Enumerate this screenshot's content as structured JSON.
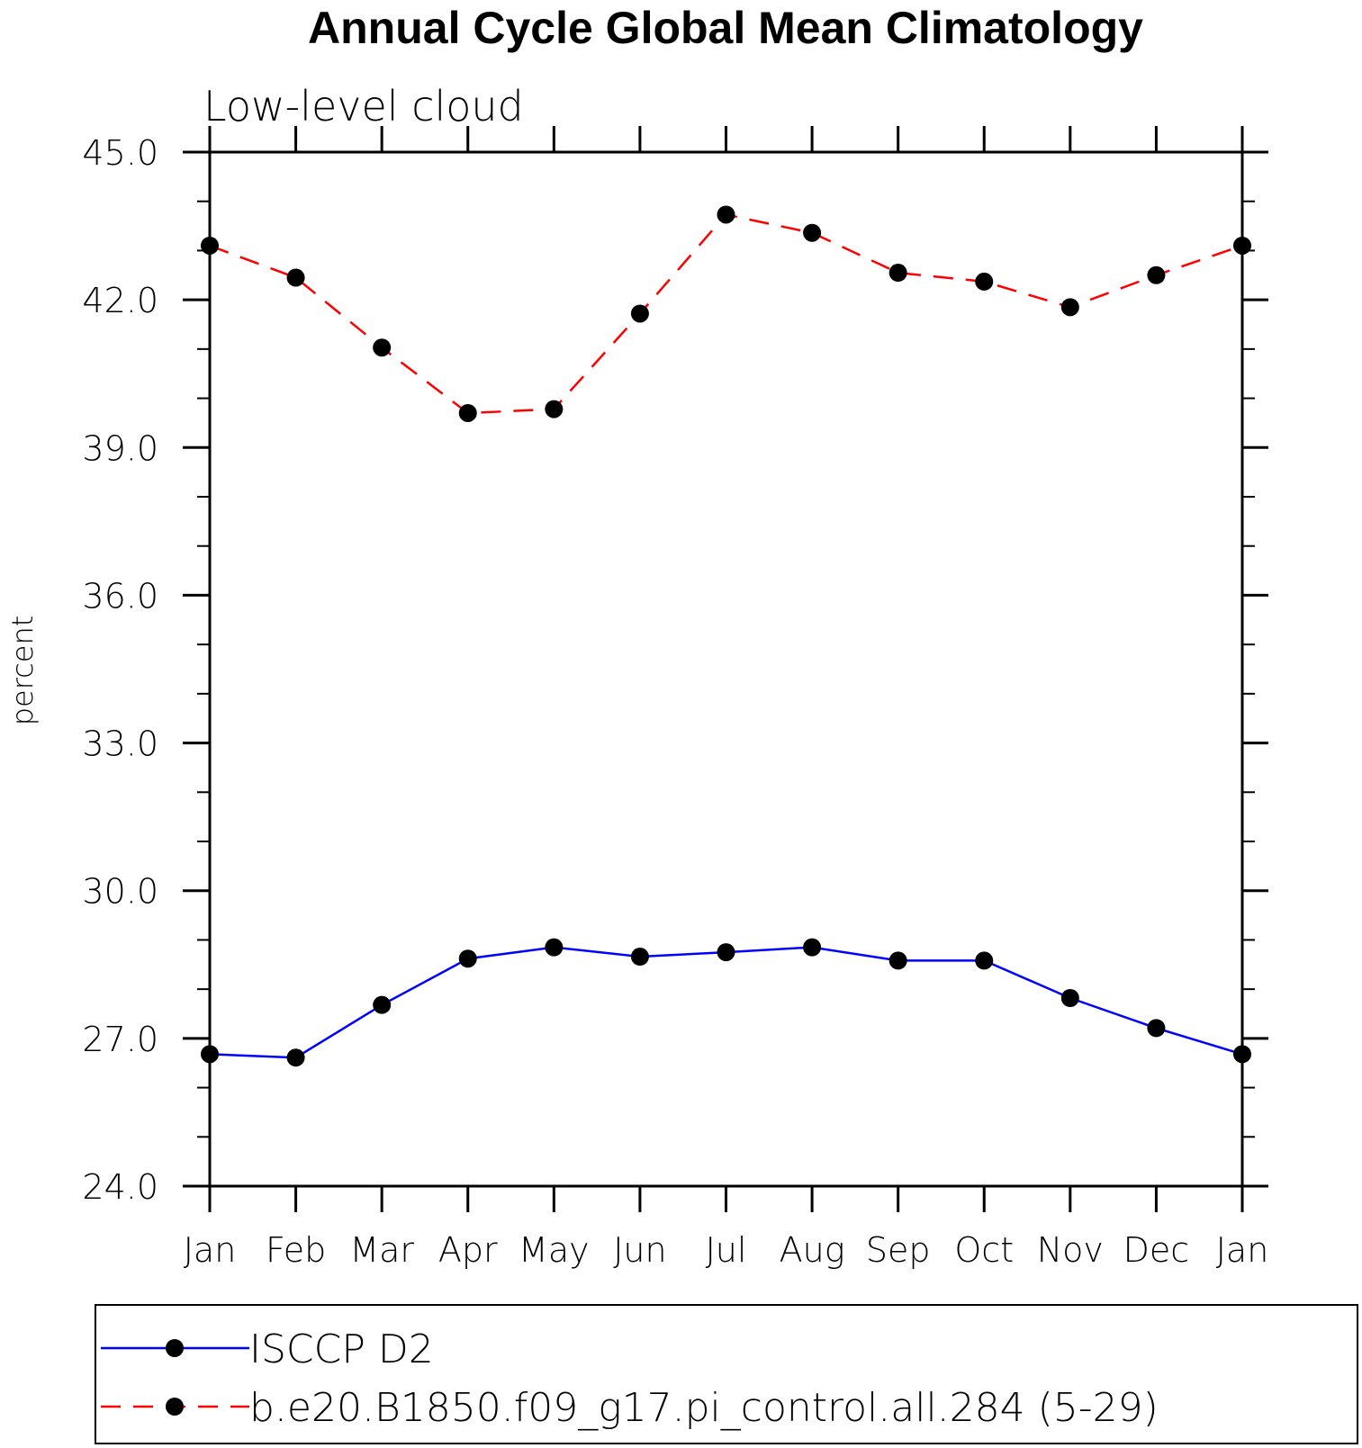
{
  "chart_data": {
    "type": "line",
    "title": "Annual Cycle Global Mean Climatology",
    "subtitle": "Low-level cloud",
    "xlabel": "",
    "ylabel": "percent",
    "categories": [
      "Jan",
      "Feb",
      "Mar",
      "Apr",
      "May",
      "Jun",
      "Jul",
      "Aug",
      "Sep",
      "Oct",
      "Nov",
      "Dec",
      "Jan"
    ],
    "ylim": [
      24.0,
      45.0
    ],
    "yticks": [
      "24.0",
      "27.0",
      "30.0",
      "33.0",
      "36.0",
      "39.0",
      "42.0",
      "45.0"
    ],
    "grid": false,
    "legend_position": "bottom",
    "series": [
      {
        "name": "ISCCP D2",
        "color": "#0000ff",
        "line_style": "solid",
        "marker": "filled-circle",
        "values": [
          26.68,
          26.61,
          27.68,
          28.62,
          28.85,
          28.66,
          28.75,
          28.85,
          28.58,
          28.58,
          27.82,
          27.21,
          26.68
        ]
      },
      {
        "name": "b.e20.B1850.f09_g17.pi_control.all.284 (5-29)",
        "color": "#ff0000",
        "line_style": "dashed",
        "marker": "filled-circle",
        "values": [
          43.1,
          42.45,
          41.03,
          39.7,
          39.78,
          41.72,
          43.73,
          43.36,
          42.55,
          42.37,
          41.85,
          42.5,
          43.1
        ]
      }
    ]
  }
}
